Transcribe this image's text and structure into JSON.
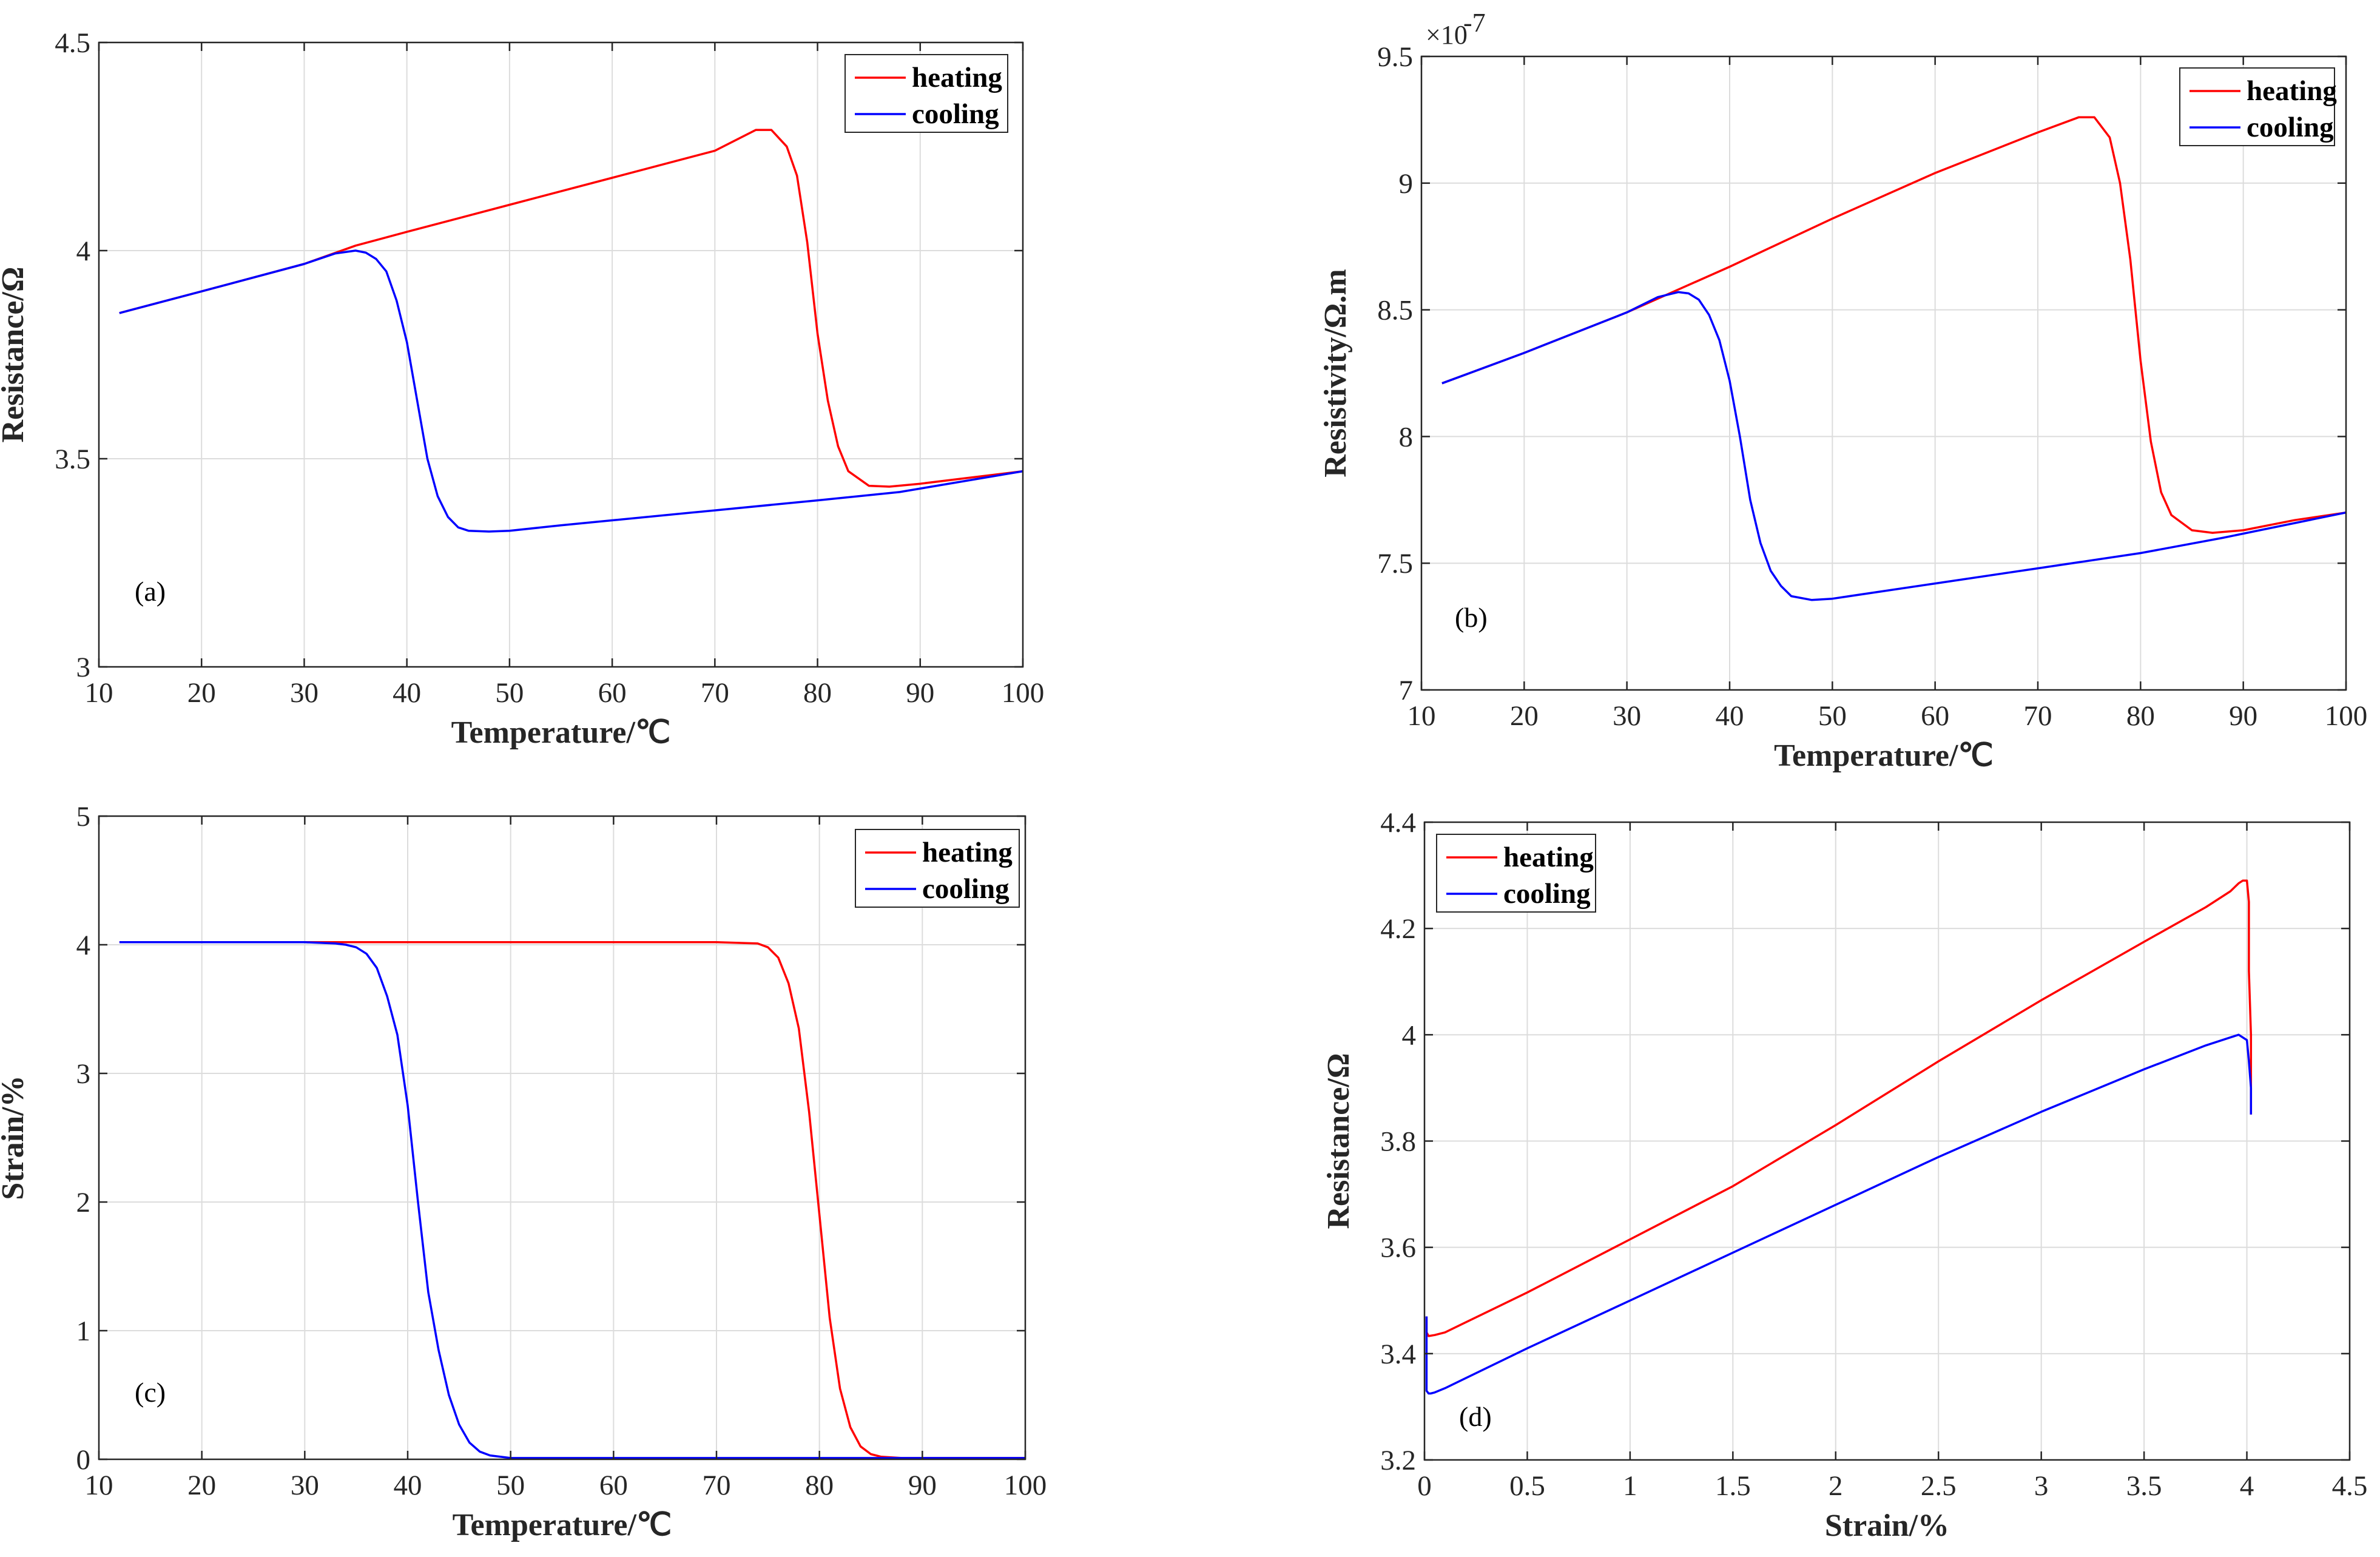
{
  "chart_data": [
    {
      "type": "line",
      "panel_label": "(a)",
      "xlabel": "Temperature/℃",
      "ylabel": "Resistance/Ω",
      "xlim": [
        10,
        100
      ],
      "ylim": [
        3,
        4.5
      ],
      "xticks": [
        "10",
        "20",
        "30",
        "40",
        "50",
        "60",
        "70",
        "80",
        "90",
        "100"
      ],
      "yticks": [
        "3",
        "3.5",
        "4",
        "4.5"
      ],
      "grid": true,
      "legend_position": "top-right",
      "series": [
        {
          "name": "heating",
          "color": "#ff0000",
          "x": [
            12,
            20,
            30,
            35,
            40,
            50,
            60,
            70,
            74,
            75.5,
            77,
            78,
            79,
            80,
            81,
            82,
            83,
            85,
            87,
            90,
            95,
            100
          ],
          "y": [
            3.85,
            3.902,
            3.968,
            4.012,
            4.045,
            4.11,
            4.175,
            4.24,
            4.29,
            4.29,
            4.25,
            4.18,
            4.02,
            3.8,
            3.64,
            3.53,
            3.47,
            3.435,
            3.433,
            3.44,
            3.455,
            3.47
          ]
        },
        {
          "name": "cooling",
          "color": "#0000ff",
          "x": [
            12,
            20,
            30,
            33,
            35,
            36,
            37,
            38,
            39,
            40,
            41,
            42,
            43,
            44,
            45,
            46,
            48,
            50,
            55,
            60,
            70,
            80,
            88,
            100
          ],
          "y": [
            3.85,
            3.902,
            3.968,
            3.993,
            4.0,
            3.995,
            3.98,
            3.95,
            3.88,
            3.78,
            3.64,
            3.5,
            3.41,
            3.36,
            3.335,
            3.327,
            3.325,
            3.327,
            3.34,
            3.352,
            3.376,
            3.4,
            3.42,
            3.47
          ]
        }
      ]
    },
    {
      "type": "line",
      "panel_label": "(b)",
      "xlabel": "Temperature/℃",
      "ylabel": "Resistivity/Ω.m",
      "exponent": "×10",
      "exponent_power": "-7",
      "xlim": [
        10,
        100
      ],
      "ylim": [
        7,
        9.5
      ],
      "xticks": [
        "10",
        "20",
        "30",
        "40",
        "50",
        "60",
        "70",
        "80",
        "90",
        "100"
      ],
      "yticks": [
        "7",
        "7.5",
        "8",
        "8.5",
        "9",
        "9.5"
      ],
      "grid": true,
      "legend_position": "top-right",
      "series": [
        {
          "name": "heating",
          "color": "#ff0000",
          "x": [
            12,
            20,
            30,
            35,
            40,
            50,
            60,
            70,
            74,
            75.5,
            77,
            78,
            79,
            80,
            81,
            82,
            83,
            85,
            87,
            90,
            95,
            100
          ],
          "y": [
            8.21,
            8.33,
            8.49,
            8.58,
            8.67,
            8.86,
            9.04,
            9.2,
            9.26,
            9.26,
            9.18,
            9.0,
            8.7,
            8.3,
            7.98,
            7.78,
            7.69,
            7.63,
            7.62,
            7.63,
            7.67,
            7.7
          ]
        },
        {
          "name": "cooling",
          "color": "#0000ff",
          "x": [
            12,
            20,
            30,
            33,
            35,
            36,
            37,
            38,
            39,
            40,
            41,
            42,
            43,
            44,
            45,
            46,
            48,
            50,
            55,
            60,
            70,
            80,
            88,
            100
          ],
          "y": [
            8.21,
            8.33,
            8.49,
            8.55,
            8.57,
            8.565,
            8.54,
            8.48,
            8.38,
            8.22,
            8.0,
            7.75,
            7.58,
            7.47,
            7.41,
            7.37,
            7.355,
            7.36,
            7.39,
            7.42,
            7.48,
            7.54,
            7.6,
            7.7
          ]
        }
      ]
    },
    {
      "type": "line",
      "panel_label": "(c)",
      "xlabel": "Temperature/℃",
      "ylabel": "Strain/%",
      "xlim": [
        10,
        100
      ],
      "ylim": [
        0,
        5
      ],
      "xticks": [
        "10",
        "20",
        "30",
        "40",
        "50",
        "60",
        "70",
        "80",
        "90",
        "100"
      ],
      "yticks": [
        "0",
        "1",
        "2",
        "3",
        "4",
        "5"
      ],
      "grid": true,
      "legend_position": "top-right",
      "series": [
        {
          "name": "heating",
          "color": "#ff0000",
          "x": [
            12,
            30,
            70,
            74,
            75,
            76,
            77,
            78,
            79,
            80,
            81,
            82,
            83,
            84,
            85,
            86,
            88,
            90,
            100
          ],
          "y": [
            4.02,
            4.02,
            4.02,
            4.01,
            3.98,
            3.9,
            3.7,
            3.35,
            2.7,
            1.9,
            1.1,
            0.55,
            0.25,
            0.1,
            0.04,
            0.02,
            0.01,
            0.01,
            0.01
          ]
        },
        {
          "name": "cooling",
          "color": "#0000ff",
          "x": [
            12,
            30,
            33,
            34,
            35,
            36,
            37,
            38,
            39,
            40,
            41,
            42,
            43,
            44,
            45,
            46,
            47,
            48,
            50,
            55,
            100
          ],
          "y": [
            4.02,
            4.02,
            4.01,
            4.0,
            3.98,
            3.93,
            3.82,
            3.6,
            3.3,
            2.75,
            2.0,
            1.3,
            0.85,
            0.5,
            0.27,
            0.13,
            0.06,
            0.03,
            0.01,
            0.01,
            0.01
          ]
        }
      ]
    },
    {
      "type": "line",
      "panel_label": "(d)",
      "xlabel": "Strain/%",
      "ylabel": "Resistance/Ω",
      "xlim": [
        0,
        4.5
      ],
      "ylim": [
        3.2,
        4.4
      ],
      "xticks": [
        "0",
        "0.5",
        "1",
        "1.5",
        "2",
        "2.5",
        "3",
        "3.5",
        "4",
        "4.5"
      ],
      "yticks": [
        "3.2",
        "3.4",
        "3.6",
        "3.8",
        "4",
        "4.2",
        "4.4"
      ],
      "grid": true,
      "legend_position": "top-left",
      "series": [
        {
          "name": "heating",
          "color": "#ff0000",
          "x": [
            0.01,
            0.01,
            0.01,
            0.02,
            0.05,
            0.1,
            0.5,
            1.0,
            1.5,
            2.0,
            2.5,
            3.0,
            3.5,
            3.8,
            3.92,
            3.96,
            3.98,
            4.0,
            4.01,
            4.01,
            4.02,
            4.02,
            4.02
          ],
          "y": [
            3.47,
            3.455,
            3.44,
            3.433,
            3.435,
            3.44,
            3.515,
            3.615,
            3.715,
            3.83,
            3.95,
            4.065,
            4.175,
            4.24,
            4.27,
            4.285,
            4.29,
            4.29,
            4.25,
            4.12,
            4.0,
            3.9,
            3.85
          ]
        },
        {
          "name": "cooling",
          "color": "#0000ff",
          "x": [
            0.01,
            0.01,
            0.01,
            0.02,
            0.03,
            0.05,
            0.1,
            0.5,
            1.0,
            1.5,
            2.0,
            2.5,
            3.0,
            3.5,
            3.8,
            3.92,
            3.96,
            4.0,
            4.01,
            4.02,
            4.02
          ],
          "y": [
            3.47,
            3.36,
            3.33,
            3.325,
            3.325,
            3.327,
            3.335,
            3.41,
            3.5,
            3.59,
            3.68,
            3.77,
            3.855,
            3.935,
            3.98,
            3.995,
            4.0,
            3.99,
            3.95,
            3.9,
            3.85
          ]
        }
      ]
    }
  ]
}
